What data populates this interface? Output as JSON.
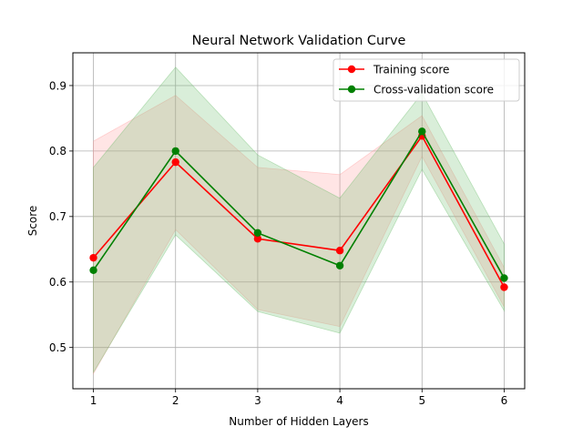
{
  "chart_data": {
    "type": "line",
    "title": "Neural Network Validation Curve",
    "xlabel": "Number of Hidden Layers",
    "ylabel": "Score",
    "xlim": [
      0.75,
      6.25
    ],
    "ylim": [
      0.437,
      0.95
    ],
    "xticks": [
      1,
      2,
      3,
      4,
      5,
      6
    ],
    "xtick_labels": [
      "1",
      "2",
      "3",
      "4",
      "5",
      "6"
    ],
    "yticks": [
      0.5,
      0.6,
      0.7,
      0.8,
      0.9
    ],
    "ytick_labels": [
      "0.5",
      "0.6",
      "0.7",
      "0.8",
      "0.9"
    ],
    "grid": true,
    "legend_position": "top-right",
    "x": [
      1,
      2,
      3,
      4,
      5,
      6
    ],
    "series": [
      {
        "name": "Training score",
        "color": "#ff0000",
        "band_color": "#ff9999",
        "values": [
          0.637,
          0.783,
          0.666,
          0.648,
          0.823,
          0.592
        ],
        "upper": [
          0.815,
          0.885,
          0.775,
          0.764,
          0.854,
          0.622
        ],
        "lower": [
          0.46,
          0.68,
          0.558,
          0.532,
          0.792,
          0.562
        ]
      },
      {
        "name": "Cross-validation score",
        "color": "#008000",
        "band_color": "#66bb66",
        "values": [
          0.618,
          0.8,
          0.675,
          0.625,
          0.83,
          0.606
        ],
        "upper": [
          0.775,
          0.928,
          0.794,
          0.728,
          0.888,
          0.658
        ],
        "lower": [
          0.462,
          0.672,
          0.555,
          0.522,
          0.772,
          0.556
        ]
      }
    ]
  }
}
